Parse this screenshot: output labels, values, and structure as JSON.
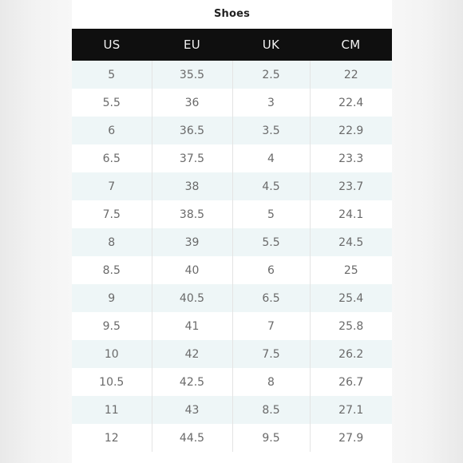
{
  "title": "Shoes",
  "columns": [
    "US",
    "EU",
    "UK",
    "CM"
  ],
  "rows": [
    [
      "5",
      "35.5",
      "2.5",
      "22"
    ],
    [
      "5.5",
      "36",
      "3",
      "22.4"
    ],
    [
      "6",
      "36.5",
      "3.5",
      "22.9"
    ],
    [
      "6.5",
      "37.5",
      "4",
      "23.3"
    ],
    [
      "7",
      "38",
      "4.5",
      "23.7"
    ],
    [
      "7.5",
      "38.5",
      "5",
      "24.1"
    ],
    [
      "8",
      "39",
      "5.5",
      "24.5"
    ],
    [
      "8.5",
      "40",
      "6",
      "25"
    ],
    [
      "9",
      "40.5",
      "6.5",
      "25.4"
    ],
    [
      "9.5",
      "41",
      "7",
      "25.8"
    ],
    [
      "10",
      "42",
      "7.5",
      "26.2"
    ],
    [
      "10.5",
      "42.5",
      "8",
      "26.7"
    ],
    [
      "11",
      "43",
      "8.5",
      "27.1"
    ],
    [
      "12",
      "44.5",
      "9.5",
      "27.9"
    ]
  ],
  "colors": {
    "header_bg": "#0f0f0f",
    "header_text": "#f2f2f2",
    "row_alt_bg": "#eef6f7",
    "cell_text": "#6a6a6a"
  }
}
